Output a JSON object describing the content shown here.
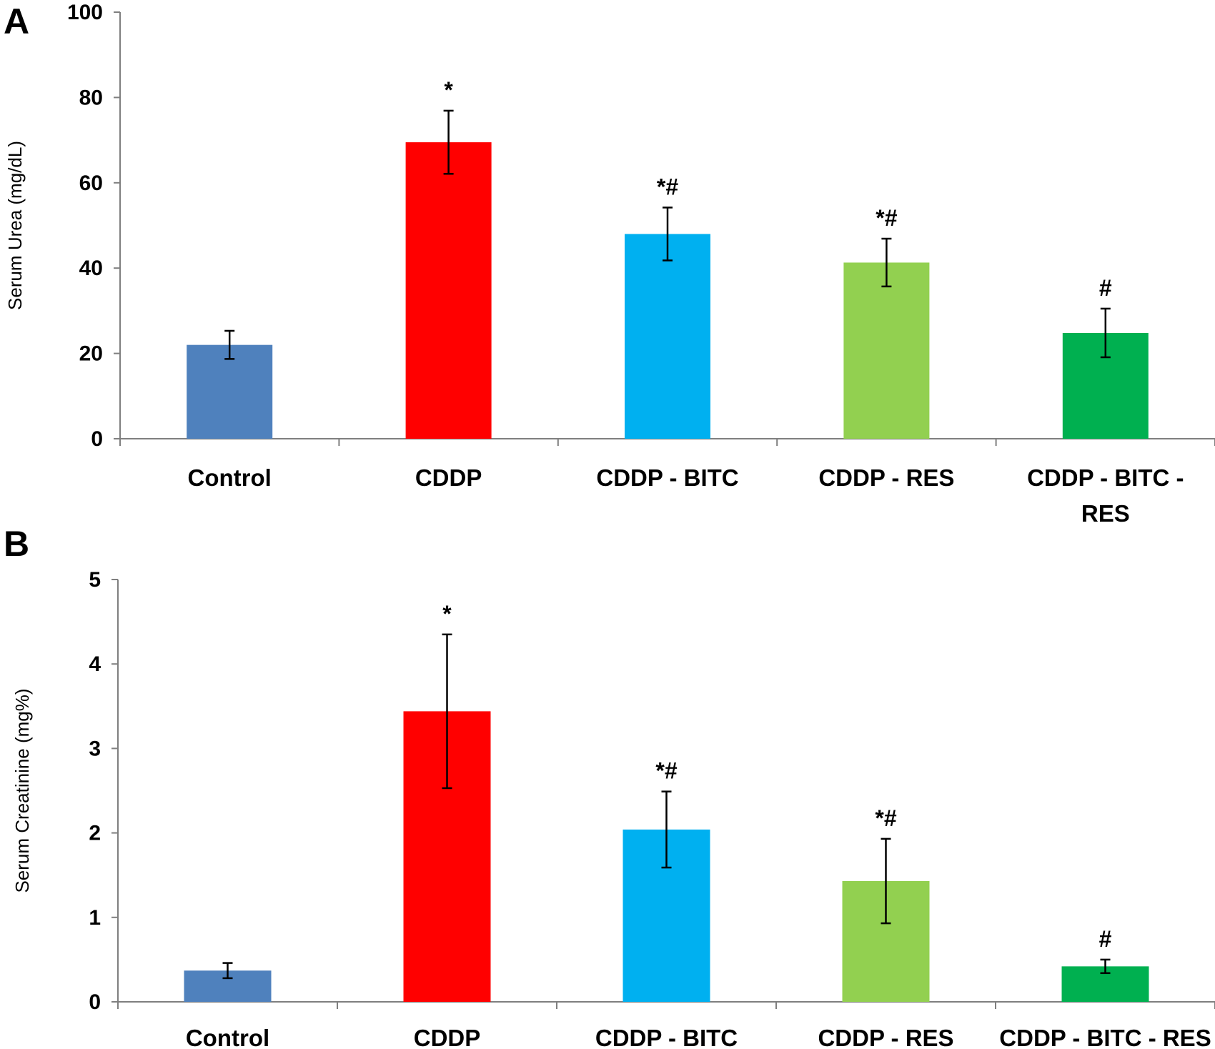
{
  "chart_data": [
    {
      "type": "bar",
      "panel_label": "A",
      "ylabel": "Serum Urea (mg/dL)",
      "xlabel": "",
      "ylim": [
        0,
        100
      ],
      "yticks": [
        "0",
        "20",
        "40",
        "60",
        "80",
        "100"
      ],
      "categories": [
        "Control",
        "CDDP",
        "CDDP - BITC",
        "CDDP - RES",
        "CDDP - BITC - RES"
      ],
      "category_lines": [
        [
          "Control"
        ],
        [
          "CDDP"
        ],
        [
          "CDDP - BITC"
        ],
        [
          "CDDP - RES"
        ],
        [
          "CDDP - BITC -",
          "RES"
        ]
      ],
      "values": [
        22,
        69.5,
        48,
        41.3,
        24.8
      ],
      "errors": [
        3.3,
        7.4,
        6.2,
        5.6,
        5.7
      ],
      "annotations": [
        "",
        "*",
        "*#",
        "*#",
        "#"
      ],
      "colors": [
        "#4f81bd",
        "#ff0000",
        "#00b0f0",
        "#92d050",
        "#00b050"
      ]
    },
    {
      "type": "bar",
      "panel_label": "B",
      "ylabel": "Serum Creatinine (mg%)",
      "xlabel": "",
      "ylim": [
        0,
        5
      ],
      "yticks": [
        "0",
        "1",
        "2",
        "3",
        "4",
        "5"
      ],
      "categories": [
        "Control",
        "CDDP",
        "CDDP - BITC",
        "CDDP - RES",
        "CDDP - BITC - RES"
      ],
      "category_lines": [
        [
          "Control"
        ],
        [
          "CDDP"
        ],
        [
          "CDDP - BITC"
        ],
        [
          "CDDP - RES"
        ],
        [
          "CDDP - BITC - RES"
        ]
      ],
      "values": [
        0.37,
        3.44,
        2.04,
        1.43,
        0.42
      ],
      "errors": [
        0.09,
        0.91,
        0.45,
        0.5,
        0.08
      ],
      "annotations": [
        "",
        "*",
        "*#",
        "*#",
        "#"
      ],
      "colors": [
        "#4f81bd",
        "#ff0000",
        "#00b0f0",
        "#92d050",
        "#00b050"
      ]
    }
  ]
}
